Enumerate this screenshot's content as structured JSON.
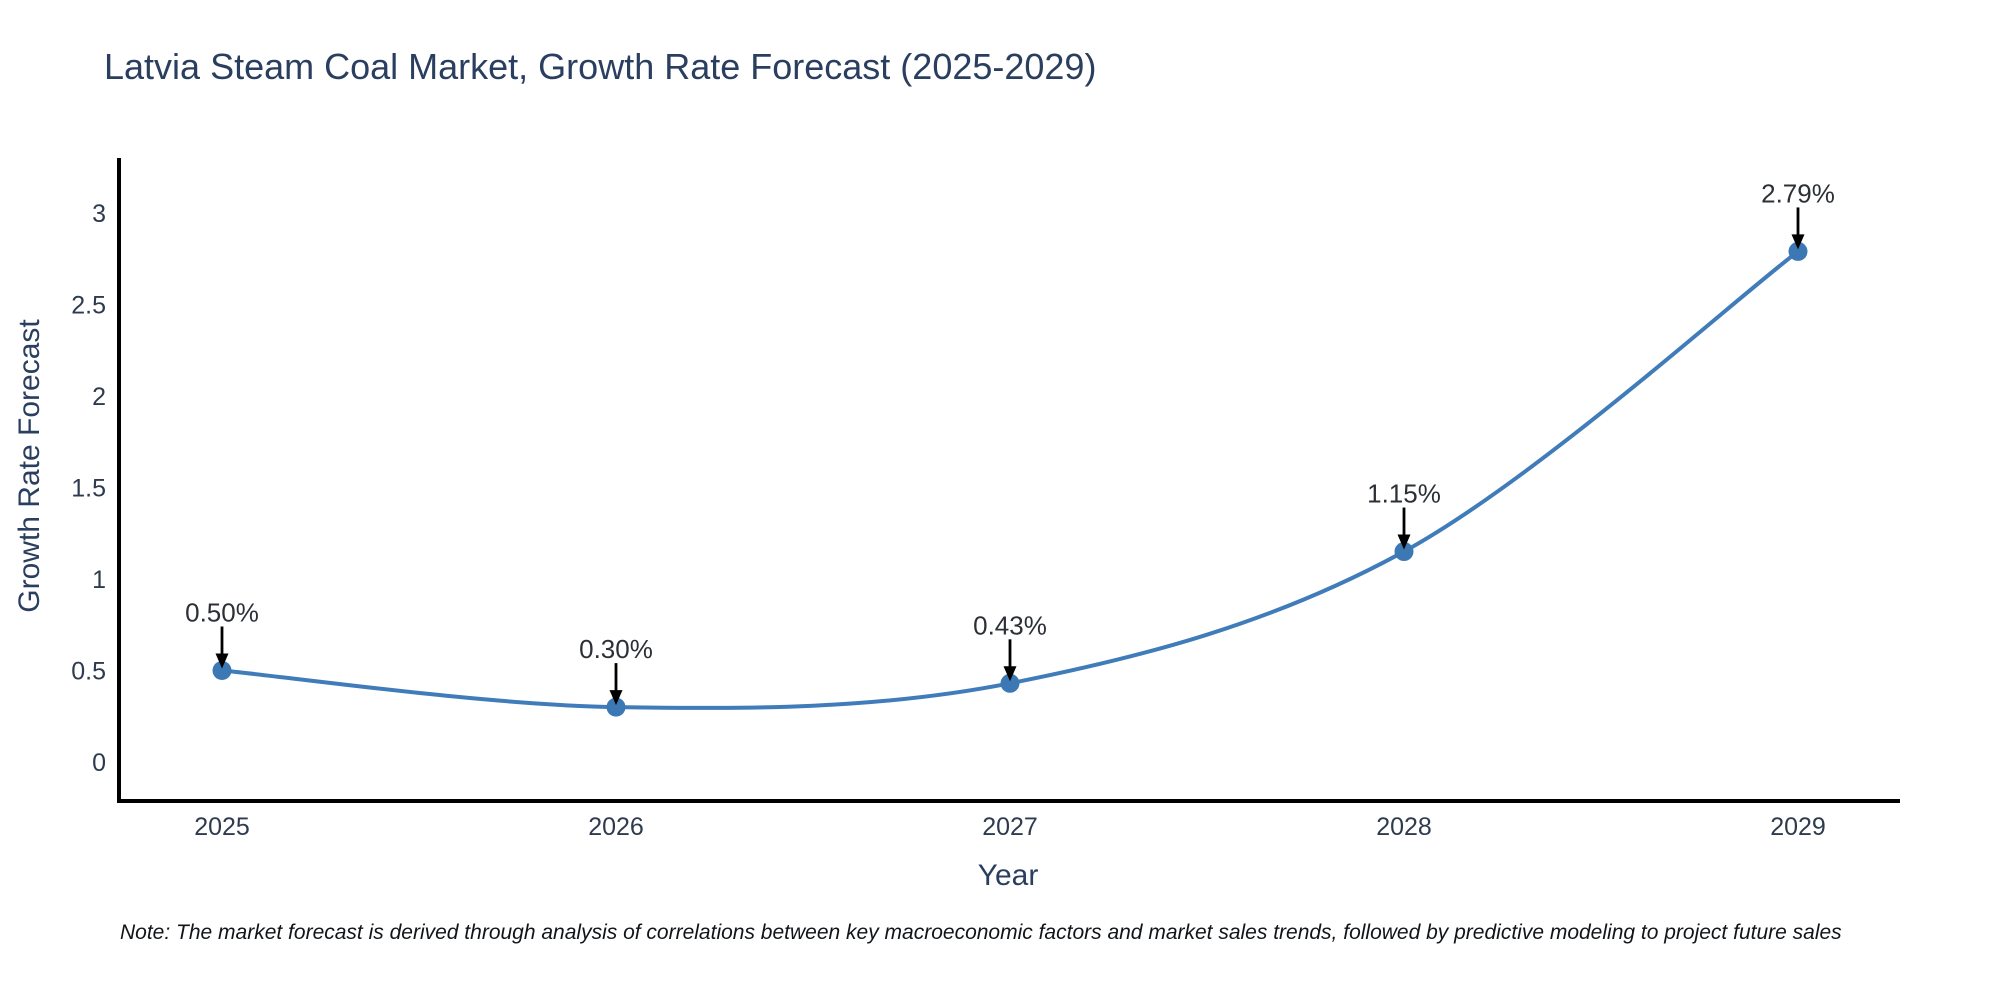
{
  "title": "Latvia Steam Coal Market, Growth Rate Forecast (2025-2029)",
  "note": "Note: The market forecast is derived through analysis of correlations between key macroeconomic factors and market sales trends, followed by predictive modeling to project future sales",
  "chart_data": {
    "type": "line",
    "title": "Latvia Steam Coal Market, Growth Rate Forecast (2025-2029)",
    "xlabel": "Year",
    "ylabel": "Growth Rate Forecast",
    "x": [
      2025,
      2026,
      2027,
      2028,
      2029
    ],
    "values": [
      0.5,
      0.3,
      0.43,
      1.15,
      2.79
    ],
    "point_labels": [
      "0.50%",
      "0.30%",
      "0.43%",
      "1.15%",
      "2.79%"
    ],
    "xticks": [
      "2025",
      "2026",
      "2027",
      "2028",
      "2029"
    ],
    "yticks": [
      "0",
      "0.5",
      "1",
      "1.5",
      "2",
      "2.5",
      "3"
    ],
    "ytick_values": [
      0,
      0.5,
      1,
      1.5,
      2,
      2.5,
      3
    ],
    "ylim": [
      -0.2,
      3.3
    ],
    "grid": false,
    "legend": "none",
    "line_shape": "spline",
    "colors": {
      "line": "#3f7cb9",
      "marker": "#3c78b4",
      "axis": "#000000",
      "arrow": "#000000",
      "title_text": "#2a3f5f",
      "tick_text": "#2e3b4e",
      "annotation_text": "#2b2f36",
      "note_text": "#111418",
      "background": "#ffffff"
    }
  }
}
